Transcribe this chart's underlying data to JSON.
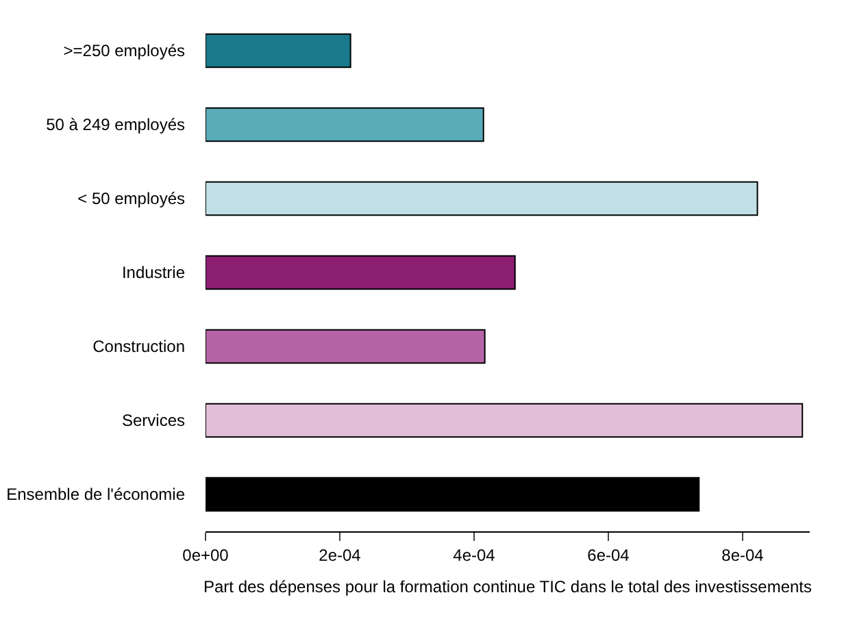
{
  "chart_data": {
    "type": "bar",
    "orientation": "horizontal",
    "categories": [
      ">=250 employés",
      "50 à 249 employés",
      "< 50 employés",
      "Industrie",
      "Construction",
      "Services",
      "Ensemble de l'économie"
    ],
    "values": [
      0.000216,
      0.000414,
      0.000822,
      0.000461,
      0.000416,
      0.000889,
      0.000735
    ],
    "colors": [
      "#1a7a8c",
      "#5aacb8",
      "#c0e0e6",
      "#8c1f72",
      "#b565a7",
      "#e2bfd8",
      "#000000"
    ],
    "xlim": [
      0,
      0.0009
    ],
    "xticks": [
      {
        "value": 0,
        "label": "0e+00"
      },
      {
        "value": 0.0002,
        "label": "2e-04"
      },
      {
        "value": 0.0004,
        "label": "4e-04"
      },
      {
        "value": 0.0006,
        "label": "6e-04"
      },
      {
        "value": 0.0008,
        "label": "8e-04"
      }
    ],
    "xlabel": "Part des dépenses pour la formation continue TIC dans le total des investissements",
    "grid": false,
    "legend": false
  }
}
